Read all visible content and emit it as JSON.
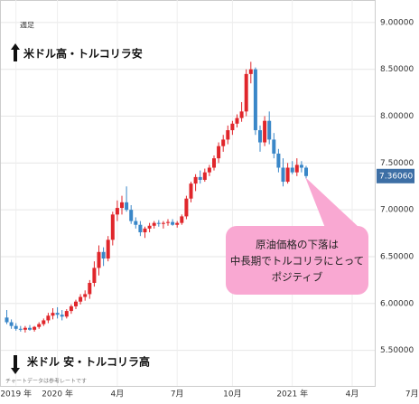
{
  "chart_data": {
    "type": "candlestick",
    "period_label": "週足",
    "annotations": [
      "米ドル高・トルコリラ安",
      "米ドル 安・トルコリラ高",
      "チャートデータは参考レートです"
    ],
    "callout": [
      "原油価格の下落は",
      "中長期でトルコリラにとって",
      "ポジティブ"
    ],
    "up_color": "#e0262b",
    "down_color": "#3a87c8",
    "categories": [
      null,
      null,
      "2019 年",
      null,
      null,
      null,
      null,
      null,
      null,
      null,
      null,
      "2020 年",
      null,
      null,
      null,
      null,
      null,
      null,
      null,
      null,
      null,
      null,
      null,
      null,
      "4月",
      null,
      null,
      null,
      null,
      null,
      null,
      null,
      null,
      null,
      null,
      null,
      null,
      "7月",
      null,
      null,
      null,
      null,
      null,
      null,
      null,
      null,
      null,
      null,
      null,
      "10月",
      null,
      null,
      null,
      null,
      null,
      null,
      null,
      null,
      null,
      null,
      null,
      null,
      "2021 年",
      null,
      null,
      null,
      null,
      null,
      null,
      null,
      null,
      null,
      null,
      null,
      null,
      "4月",
      null,
      null,
      null,
      null,
      null,
      null,
      null,
      null,
      null,
      null,
      null,
      null,
      "7月"
    ],
    "open": [
      5.85,
      5.8,
      5.76,
      5.73,
      5.72,
      5.74,
      5.72,
      5.75,
      5.78,
      5.82,
      5.87,
      5.9,
      5.88,
      5.86,
      5.92,
      5.97,
      6.02,
      6.07,
      6.1,
      6.22,
      6.38,
      6.55,
      6.48,
      6.68,
      6.95,
      7.02,
      7.08,
      7.0,
      6.88,
      6.84,
      6.76,
      6.8,
      6.83,
      6.86,
      6.85,
      6.86,
      6.87,
      6.84,
      6.86,
      6.93,
      7.12,
      7.28,
      7.35,
      7.32,
      7.4,
      7.45,
      7.55,
      7.68,
      7.75,
      7.85,
      7.92,
      7.98,
      8.05,
      8.45,
      8.5,
      7.85,
      7.72,
      7.95,
      7.75,
      7.6,
      7.45,
      7.3,
      7.45,
      7.4,
      7.48,
      7.45,
      null,
      null,
      null,
      null,
      null,
      null,
      null,
      null,
      null,
      null,
      null,
      null,
      null,
      null,
      null,
      null,
      null,
      null,
      null,
      null,
      null,
      null,
      null
    ],
    "high": [
      5.93,
      5.83,
      5.79,
      5.76,
      5.76,
      5.77,
      5.76,
      5.8,
      5.84,
      5.9,
      5.95,
      5.96,
      5.93,
      5.94,
      5.99,
      6.04,
      6.1,
      6.14,
      6.25,
      6.45,
      6.62,
      6.6,
      6.72,
      6.98,
      7.1,
      7.15,
      7.25,
      7.05,
      6.92,
      6.88,
      6.82,
      6.86,
      6.88,
      6.89,
      6.88,
      6.9,
      6.9,
      6.88,
      6.95,
      7.15,
      7.3,
      7.38,
      7.42,
      7.44,
      7.48,
      7.58,
      7.72,
      7.8,
      7.9,
      7.95,
      8.02,
      8.15,
      8.5,
      8.58,
      8.52,
      7.9,
      8.0,
      8.05,
      7.82,
      7.65,
      7.55,
      7.5,
      7.52,
      7.55,
      7.52,
      7.47,
      null,
      null,
      null,
      null,
      null,
      null,
      null,
      null,
      null,
      null,
      null,
      null,
      null,
      null,
      null,
      null,
      null,
      null,
      null,
      null,
      null,
      null,
      null
    ],
    "low": [
      5.78,
      5.73,
      5.71,
      5.7,
      5.69,
      5.71,
      5.7,
      5.73,
      5.76,
      5.79,
      5.83,
      5.84,
      5.82,
      5.84,
      5.89,
      5.94,
      5.99,
      6.03,
      6.05,
      6.18,
      6.3,
      6.4,
      6.45,
      6.62,
      6.88,
      6.95,
      6.98,
      6.85,
      6.8,
      6.72,
      6.7,
      6.76,
      6.8,
      6.82,
      6.8,
      6.83,
      6.83,
      6.81,
      6.84,
      6.9,
      7.08,
      7.2,
      7.28,
      7.3,
      7.36,
      7.42,
      7.5,
      7.62,
      7.7,
      7.8,
      7.88,
      7.94,
      8.0,
      8.35,
      7.8,
      7.62,
      7.68,
      7.7,
      7.55,
      7.4,
      7.25,
      7.28,
      7.38,
      7.36,
      7.4,
      7.33,
      null,
      null,
      null,
      null,
      null,
      null,
      null,
      null,
      null,
      null,
      null,
      null,
      null,
      null,
      null,
      null,
      null,
      null,
      null,
      null,
      null,
      null,
      null
    ],
    "close": [
      5.8,
      5.76,
      5.73,
      5.72,
      5.74,
      5.72,
      5.75,
      5.78,
      5.82,
      5.87,
      5.9,
      5.88,
      5.86,
      5.92,
      5.97,
      6.02,
      6.07,
      6.1,
      6.22,
      6.38,
      6.55,
      6.48,
      6.68,
      6.95,
      7.02,
      7.08,
      7.0,
      6.88,
      6.84,
      6.76,
      6.8,
      6.83,
      6.86,
      6.85,
      6.86,
      6.87,
      6.84,
      6.86,
      6.93,
      7.12,
      7.28,
      7.35,
      7.32,
      7.4,
      7.45,
      7.55,
      7.68,
      7.75,
      7.85,
      7.92,
      7.98,
      8.05,
      8.45,
      8.5,
      7.85,
      7.72,
      7.95,
      7.75,
      7.6,
      7.45,
      7.3,
      7.45,
      7.4,
      7.48,
      7.45,
      7.3606,
      null,
      null,
      null,
      null,
      null,
      null,
      null,
      null,
      null,
      null,
      null,
      null,
      null,
      null,
      null,
      null,
      null,
      null,
      null,
      null,
      null,
      null,
      null
    ],
    "current_price": {
      "value": 7.3606,
      "label": "7.36060"
    },
    "ylim": [
      5.12,
      9.24
    ],
    "yticks": [
      {
        "value": 5.5,
        "label": "5.50000"
      },
      {
        "value": 6,
        "label": "6.00000"
      },
      {
        "value": 6.5,
        "label": "6.50000"
      },
      {
        "value": 7,
        "label": "7.00000"
      },
      {
        "value": 7.5,
        "label": "7.50000"
      },
      {
        "value": 8,
        "label": "8.00000"
      },
      {
        "value": 8.5,
        "label": "8.50000"
      },
      {
        "value": 9,
        "label": "9.00000"
      }
    ],
    "grid": true
  }
}
